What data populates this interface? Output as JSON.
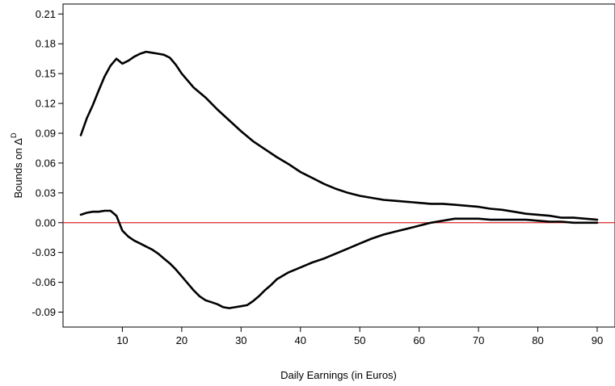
{
  "chart_data": {
    "type": "line",
    "xlabel": "Daily Earnings (in Euros)",
    "ylabel": "Bounds on Δ",
    "ylabel_superscript": "D",
    "xlim": [
      0,
      93
    ],
    "ylim": [
      -0.105,
      0.22
    ],
    "x_ticks": [
      "10",
      "20",
      "30",
      "40",
      "50",
      "60",
      "70",
      "80",
      "90"
    ],
    "y_ticks": [
      "0.21",
      "0.18",
      "0.15",
      "0.12",
      "0.09",
      "0.06",
      "0.03",
      "0.00",
      "-0.03",
      "-0.06",
      "-0.09"
    ],
    "reference_line": {
      "y": 0.0,
      "color": "#d62728"
    },
    "series_color": "#000000",
    "series": [
      {
        "x": [
          3,
          4,
          5,
          6,
          7,
          8,
          9,
          10,
          11,
          12,
          13,
          14,
          15,
          16,
          17,
          18,
          19,
          20,
          22,
          24,
          26,
          28,
          30,
          32,
          34,
          36,
          38,
          40,
          42,
          44,
          46,
          48,
          50,
          52,
          54,
          56,
          58,
          60,
          62,
          64,
          66,
          68,
          70,
          72,
          74,
          76,
          78,
          80,
          82,
          84,
          86,
          88,
          90
        ],
        "y": [
          0.088,
          0.105,
          0.118,
          0.133,
          0.147,
          0.158,
          0.165,
          0.16,
          0.163,
          0.167,
          0.17,
          0.172,
          0.171,
          0.17,
          0.169,
          0.166,
          0.159,
          0.15,
          0.136,
          0.126,
          0.114,
          0.103,
          0.092,
          0.082,
          0.074,
          0.066,
          0.059,
          0.051,
          0.045,
          0.039,
          0.034,
          0.03,
          0.027,
          0.025,
          0.023,
          0.022,
          0.021,
          0.02,
          0.019,
          0.019,
          0.018,
          0.017,
          0.016,
          0.014,
          0.013,
          0.011,
          0.009,
          0.008,
          0.007,
          0.005,
          0.005,
          0.004,
          0.003
        ]
      },
      {
        "x": [
          3,
          4,
          5,
          6,
          7,
          8,
          9,
          10,
          11,
          12,
          13,
          14,
          15,
          16,
          17,
          18,
          19,
          20,
          21,
          22,
          23,
          24,
          25,
          26,
          27,
          28,
          29,
          30,
          31,
          32,
          33,
          34,
          35,
          36,
          38,
          40,
          42,
          44,
          46,
          48,
          50,
          52,
          54,
          56,
          58,
          60,
          62,
          64,
          66,
          68,
          70,
          72,
          74,
          76,
          78,
          80,
          82,
          84,
          86,
          88,
          90
        ],
        "y": [
          0.008,
          0.01,
          0.011,
          0.011,
          0.012,
          0.012,
          0.007,
          -0.008,
          -0.014,
          -0.018,
          -0.021,
          -0.024,
          -0.027,
          -0.031,
          -0.036,
          -0.041,
          -0.047,
          -0.054,
          -0.061,
          -0.068,
          -0.074,
          -0.078,
          -0.08,
          -0.082,
          -0.085,
          -0.086,
          -0.085,
          -0.084,
          -0.083,
          -0.079,
          -0.074,
          -0.068,
          -0.063,
          -0.057,
          -0.05,
          -0.045,
          -0.04,
          -0.036,
          -0.031,
          -0.026,
          -0.021,
          -0.016,
          -0.012,
          -0.009,
          -0.006,
          -0.003,
          0.0,
          0.002,
          0.004,
          0.004,
          0.004,
          0.003,
          0.003,
          0.003,
          0.003,
          0.002,
          0.001,
          0.001,
          0.0,
          0.0,
          0.0
        ]
      }
    ]
  }
}
